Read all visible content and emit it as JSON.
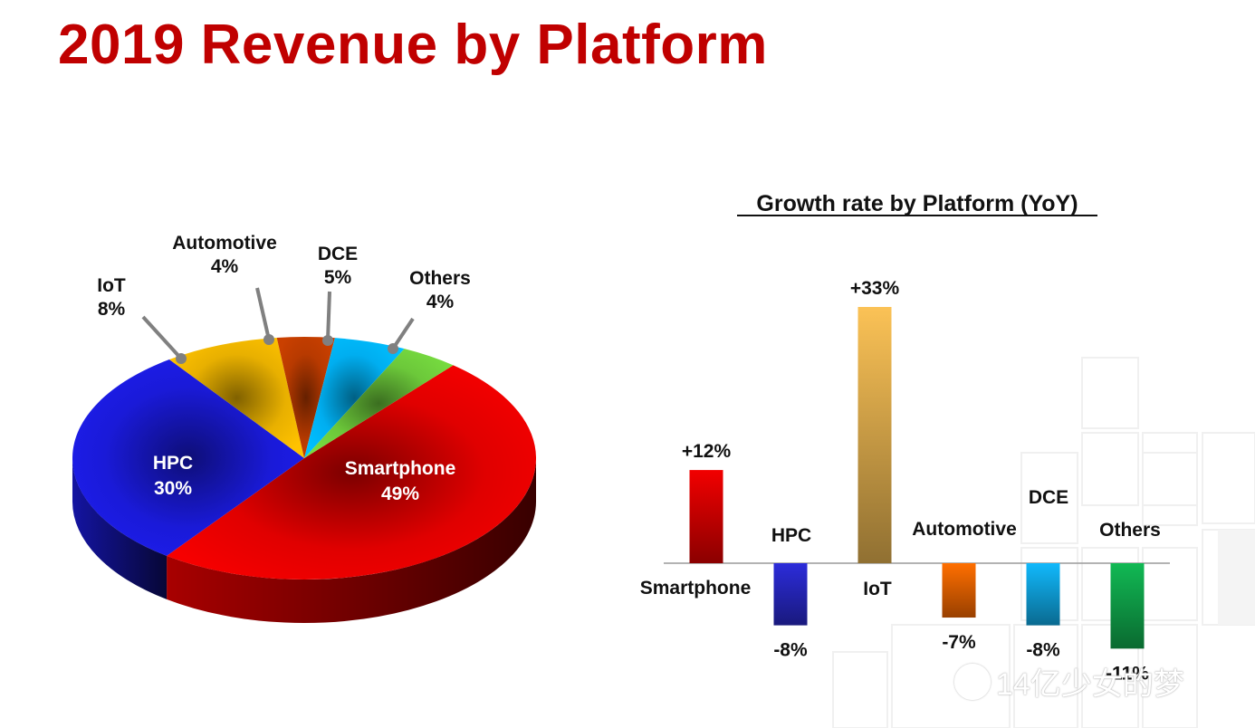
{
  "title": "2019 Revenue by Platform",
  "watermark": "14亿少女的梦",
  "chart_data": [
    {
      "type": "pie",
      "title": "",
      "series": [
        {
          "name": "Smartphone",
          "value": 49,
          "label": "49%",
          "color": "#e00000"
        },
        {
          "name": "HPC",
          "value": 30,
          "label": "30%",
          "color": "#1a1ad8"
        },
        {
          "name": "IoT",
          "value": 8,
          "label": "8%",
          "color": "#e8b000"
        },
        {
          "name": "Automotive",
          "value": 4,
          "label": "4%",
          "color": "#b83a00"
        },
        {
          "name": "DCE",
          "value": 5,
          "label": "5%",
          "color": "#00aef0"
        },
        {
          "name": "Others",
          "value": 4,
          "label": "4%",
          "color": "#6cc83a"
        }
      ]
    },
    {
      "type": "bar",
      "title": "Growth rate by Platform (YoY)",
      "categories": [
        "Smartphone",
        "HPC",
        "IoT",
        "Automotive",
        "DCE",
        "Others"
      ],
      "values": [
        12,
        -8,
        33,
        -7,
        -8,
        -11
      ],
      "value_labels": [
        "+12%",
        "-8%",
        "+33%",
        "-7%",
        "-8%",
        "-11%"
      ],
      "colors": [
        "#e00000",
        "#2a2ad0",
        "#e8b450",
        "#ff6a00",
        "#10b0f0",
        "#10b050"
      ],
      "ylim": [
        -11,
        33
      ],
      "grid": false,
      "legend": "none"
    }
  ]
}
